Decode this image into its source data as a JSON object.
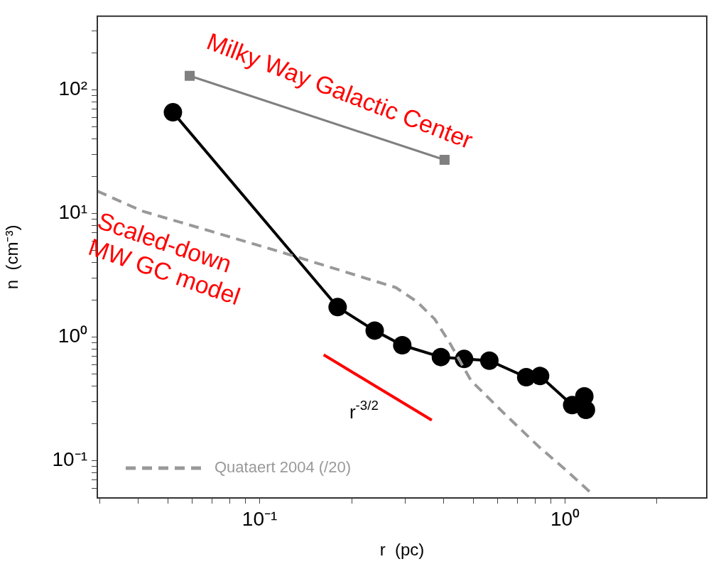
{
  "chart_data": {
    "type": "line",
    "xlabel": "r  (pc)",
    "ylabel": "n  (cm⁻³)",
    "log": "xy",
    "grid": false,
    "legend": "bottom left",
    "xlim": [
      0.0294,
      2.91
    ],
    "ylim": [
      0.05,
      395
    ],
    "xticks": [
      {
        "value": 0.03,
        "label": null
      },
      {
        "value": 0.04,
        "label": null
      },
      {
        "value": 0.05,
        "label": null
      },
      {
        "value": 0.06,
        "label": null
      },
      {
        "value": 0.07,
        "label": null
      },
      {
        "value": 0.08,
        "label": null
      },
      {
        "value": 0.09,
        "label": null
      },
      {
        "value": 0.1,
        "label": "10⁻¹"
      },
      {
        "value": 0.2,
        "label": null
      },
      {
        "value": 0.3,
        "label": null
      },
      {
        "value": 0.4,
        "label": null
      },
      {
        "value": 0.5,
        "label": null
      },
      {
        "value": 0.6,
        "label": null
      },
      {
        "value": 0.7,
        "label": null
      },
      {
        "value": 0.8,
        "label": null
      },
      {
        "value": 0.9,
        "label": null
      },
      {
        "value": 1,
        "label": "10⁰"
      },
      {
        "value": 2,
        "label": null
      }
    ],
    "yticks": [
      {
        "value": 0.06,
        "label": null
      },
      {
        "value": 0.07,
        "label": null
      },
      {
        "value": 0.08,
        "label": null
      },
      {
        "value": 0.09,
        "label": null
      },
      {
        "value": 0.1,
        "label": "10⁻¹"
      },
      {
        "value": 0.2,
        "label": null
      },
      {
        "value": 0.3,
        "label": null
      },
      {
        "value": 0.4,
        "label": null
      },
      {
        "value": 0.5,
        "label": null
      },
      {
        "value": 0.6,
        "label": null
      },
      {
        "value": 0.7,
        "label": null
      },
      {
        "value": 0.8,
        "label": null
      },
      {
        "value": 0.9,
        "label": null
      },
      {
        "value": 1,
        "label": "10⁰"
      },
      {
        "value": 2,
        "label": null
      },
      {
        "value": 3,
        "label": null
      },
      {
        "value": 4,
        "label": null
      },
      {
        "value": 5,
        "label": null
      },
      {
        "value": 6,
        "label": null
      },
      {
        "value": 7,
        "label": null
      },
      {
        "value": 8,
        "label": null
      },
      {
        "value": 9,
        "label": null
      },
      {
        "value": 10,
        "label": "10¹"
      },
      {
        "value": 20,
        "label": null
      },
      {
        "value": 30,
        "label": null
      },
      {
        "value": 40,
        "label": null
      },
      {
        "value": 50,
        "label": null
      },
      {
        "value": 60,
        "label": null
      },
      {
        "value": 70,
        "label": null
      },
      {
        "value": 80,
        "label": null
      },
      {
        "value": 90,
        "label": null
      },
      {
        "value": 100,
        "label": "10²"
      },
      {
        "value": 200,
        "label": null
      },
      {
        "value": 300,
        "label": null
      }
    ],
    "series": [
      {
        "name": "Quataert 2004 (/20)",
        "color": "#999999",
        "line_style": "dashed",
        "marker": "none",
        "x": [
          0.0294,
          0.0411,
          0.07,
          0.119,
          0.183,
          0.279,
          0.327,
          0.374,
          0.42,
          0.492,
          0.631,
          0.823,
          1.018,
          1.225
        ],
        "values": [
          15.2,
          10.5,
          7.13,
          4.83,
          3.48,
          2.52,
          1.94,
          1.4,
          0.89,
          0.445,
          0.242,
          0.129,
          0.082,
          0.054
        ]
      },
      {
        "color": "#808080",
        "line_style": "solid",
        "marker": "square",
        "x": [
          0.059,
          0.403
        ],
        "values": [
          130,
          27.2
        ]
      },
      {
        "color": "#000000",
        "line_style": "solid",
        "marker": "circle",
        "x": [
          0.052,
          0.18,
          0.238,
          0.293,
          0.392,
          0.467,
          0.565,
          0.746,
          0.828,
          1.055,
          1.156,
          1.17
        ],
        "values": [
          65.9,
          1.75,
          1.13,
          0.86,
          0.69,
          0.666,
          0.645,
          0.474,
          0.485,
          0.282,
          0.332,
          0.258
        ]
      },
      {
        "color": "#ff0000",
        "line_style": "solid",
        "marker": "none",
        "x": [
          0.162,
          0.366
        ],
        "values": [
          0.72,
          0.213
        ]
      }
    ],
    "annotations": [
      "Milky Way Galactic Center",
      "Scaled-down\nMW GC model",
      "r$^{-3/2}$"
    ]
  }
}
